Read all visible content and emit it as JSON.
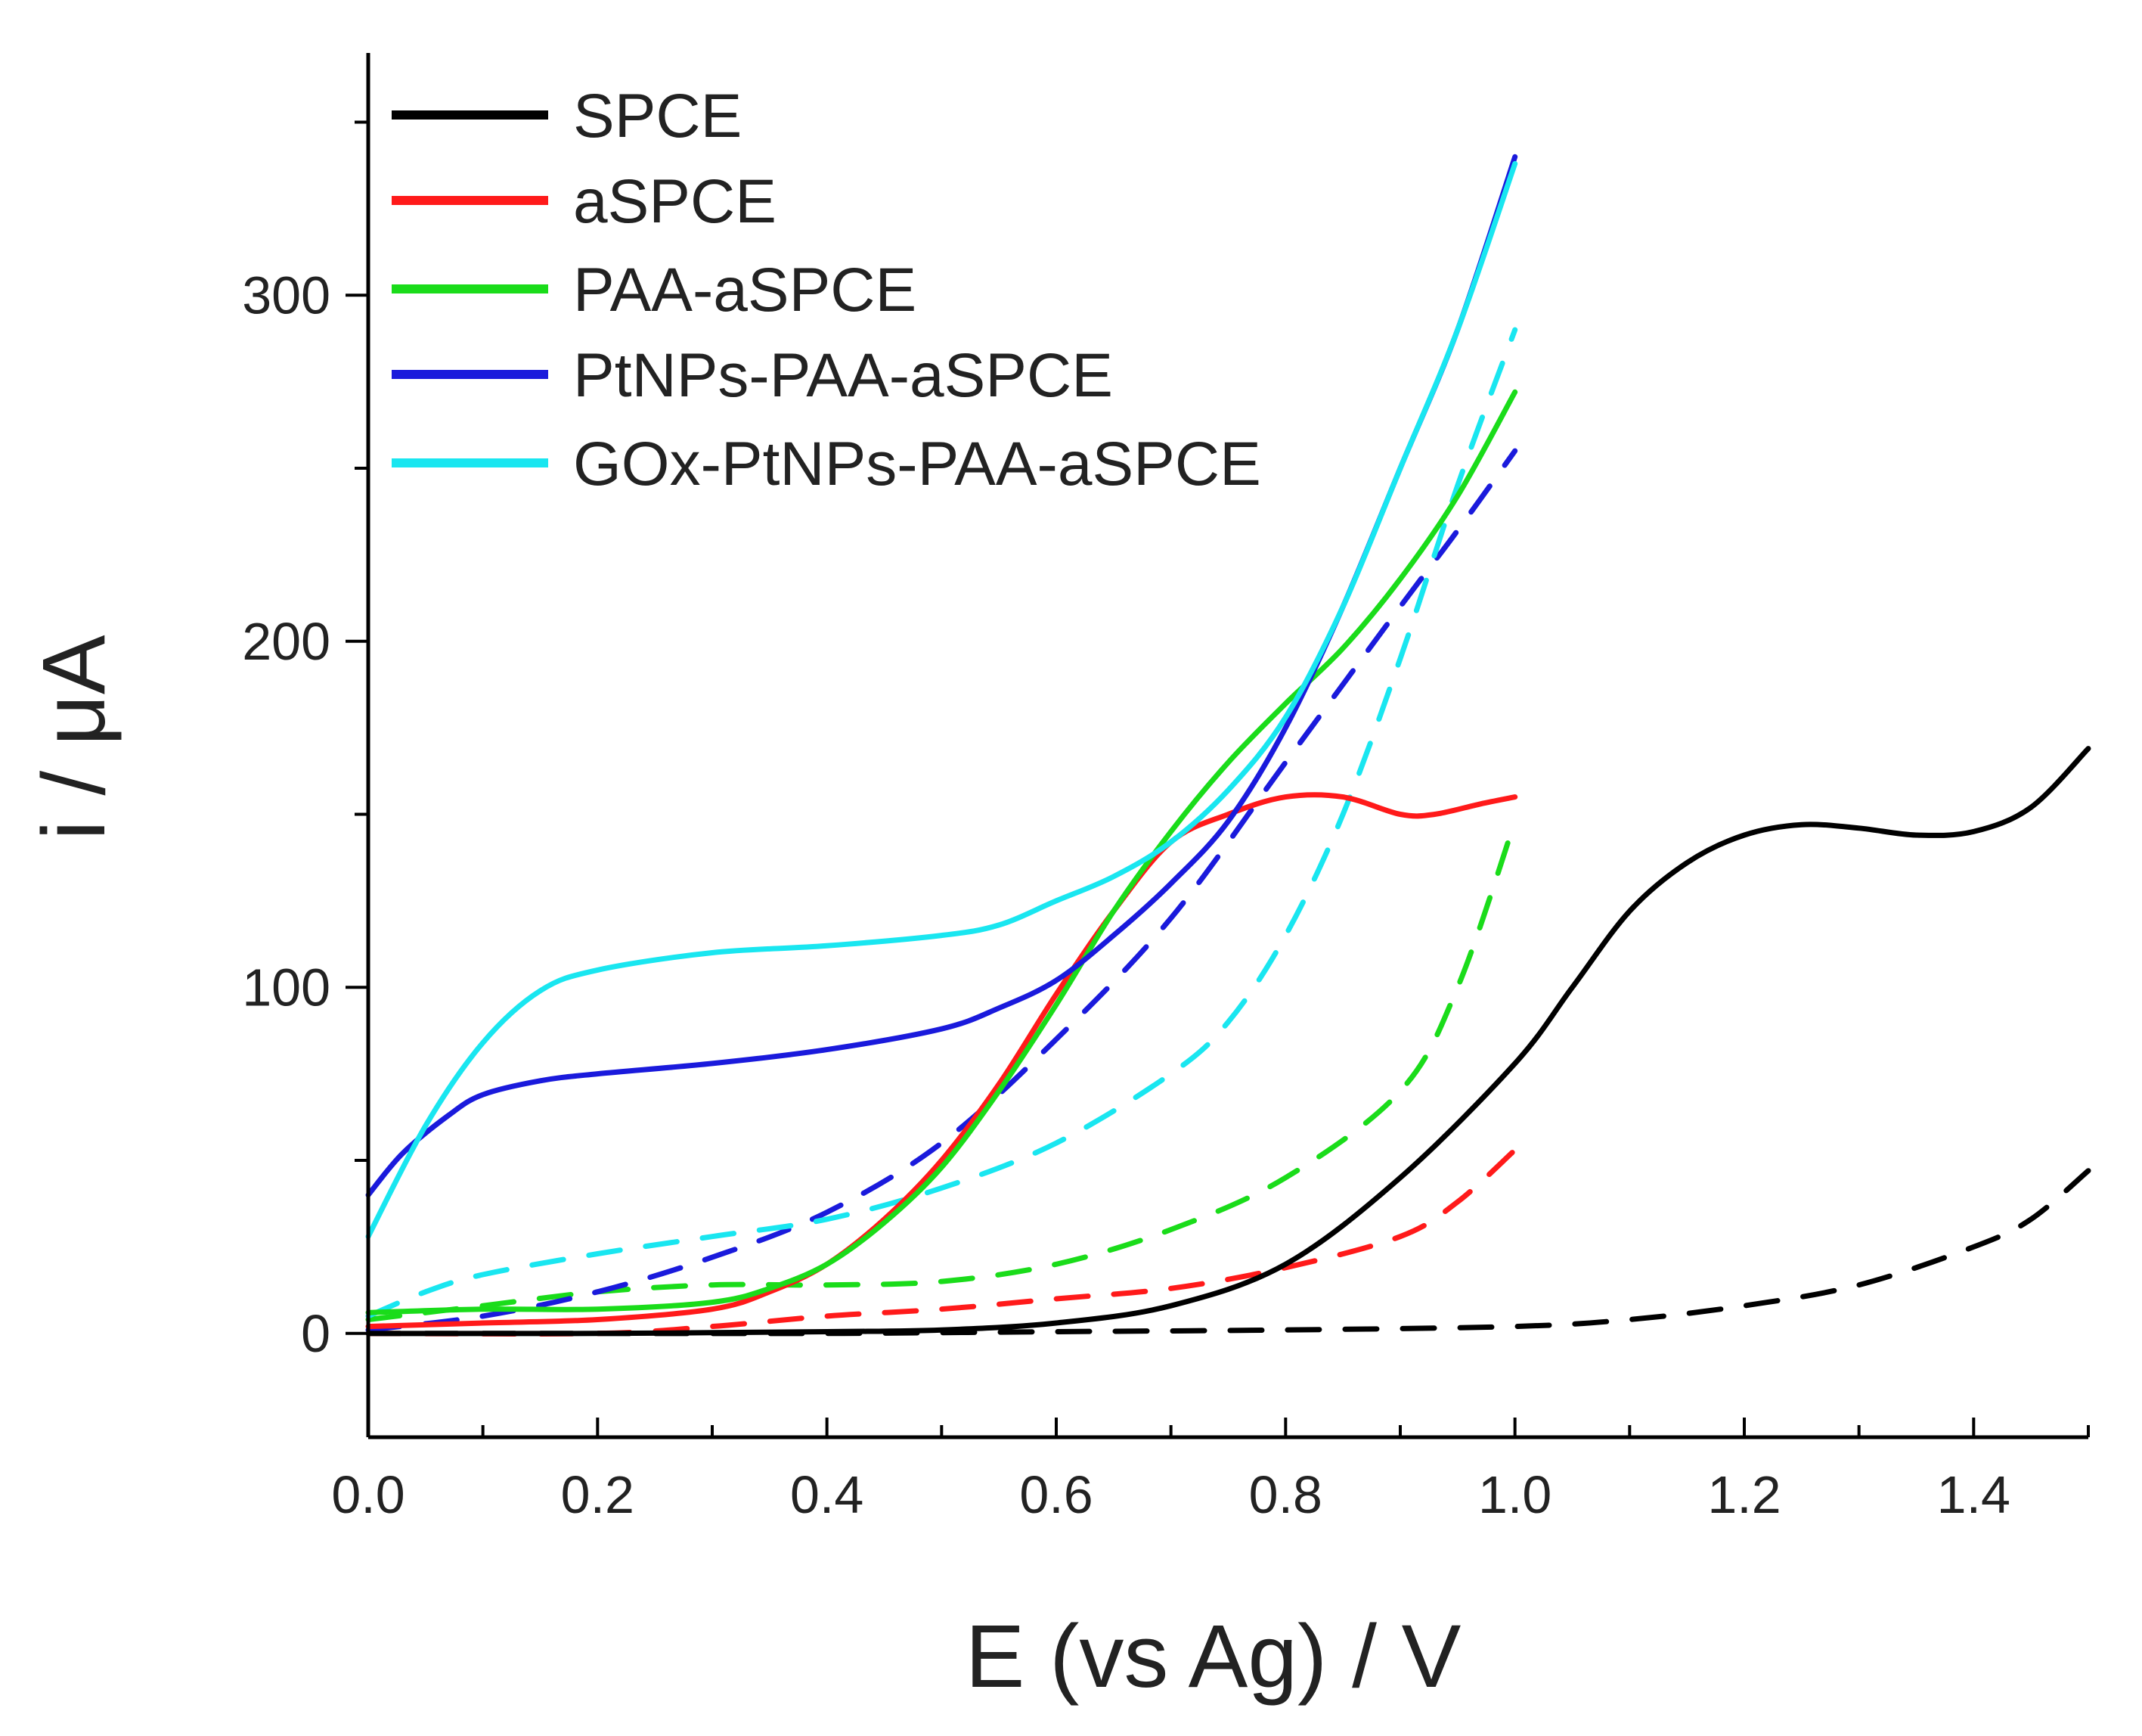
{
  "chart_data": {
    "type": "line",
    "title": "",
    "xlabel": "E (vs Ag) / V",
    "ylabel": "i / μA",
    "xlim": [
      0.0,
      1.5
    ],
    "ylim": [
      -30,
      370
    ],
    "xticks": [
      0.0,
      0.2,
      0.4,
      0.6,
      0.8,
      1.0,
      1.2,
      1.4
    ],
    "xtick_labels": [
      "0.0",
      "0.2",
      "0.4",
      "0.6",
      "0.8",
      "1.0",
      "1.2",
      "1.4"
    ],
    "yticks": [
      0,
      100,
      200,
      300
    ],
    "ytick_labels": [
      "0",
      "100",
      "200",
      "300"
    ],
    "legend_position": "top-left",
    "legend": [
      {
        "label": "SPCE",
        "color": "#000000"
      },
      {
        "label": "aSPCE",
        "color": "#ff1a1a"
      },
      {
        "label": "PAA-aSPCE",
        "color": "#1adc1a"
      },
      {
        "label": "PtNPs-PAA-aSPCE",
        "color": "#1a1adc"
      },
      {
        "label": "GOx-PtNPs-PAA-aSPCE",
        "color": "#19e6f0"
      }
    ],
    "series": [
      {
        "name": "SPCE",
        "style": "solid",
        "color": "#000000",
        "points": [
          [
            0.0,
            0
          ],
          [
            0.2,
            0
          ],
          [
            0.4,
            0.5
          ],
          [
            0.5,
            1
          ],
          [
            0.6,
            3
          ],
          [
            0.7,
            8
          ],
          [
            0.8,
            20
          ],
          [
            0.9,
            45
          ],
          [
            1.0,
            78
          ],
          [
            1.05,
            100
          ],
          [
            1.1,
            122
          ],
          [
            1.15,
            136
          ],
          [
            1.2,
            144
          ],
          [
            1.25,
            147
          ],
          [
            1.3,
            146
          ],
          [
            1.35,
            144
          ],
          [
            1.4,
            145
          ],
          [
            1.45,
            152
          ],
          [
            1.5,
            169
          ]
        ]
      },
      {
        "name": "SPCE (dashed)",
        "style": "dashed",
        "color": "#000000",
        "points": [
          [
            0.0,
            0
          ],
          [
            0.2,
            0
          ],
          [
            0.4,
            0
          ],
          [
            0.6,
            0.5
          ],
          [
            0.8,
            1
          ],
          [
            1.0,
            2
          ],
          [
            1.1,
            4
          ],
          [
            1.2,
            8
          ],
          [
            1.3,
            14
          ],
          [
            1.4,
            25
          ],
          [
            1.45,
            33
          ],
          [
            1.5,
            47
          ]
        ]
      },
      {
        "name": "aSPCE",
        "style": "solid",
        "color": "#ff1a1a",
        "points": [
          [
            0.0,
            2
          ],
          [
            0.1,
            3
          ],
          [
            0.2,
            4
          ],
          [
            0.3,
            7
          ],
          [
            0.35,
            12
          ],
          [
            0.4,
            20
          ],
          [
            0.45,
            33
          ],
          [
            0.5,
            50
          ],
          [
            0.55,
            72
          ],
          [
            0.6,
            98
          ],
          [
            0.65,
            122
          ],
          [
            0.7,
            142
          ],
          [
            0.75,
            150
          ],
          [
            0.8,
            155
          ],
          [
            0.85,
            155
          ],
          [
            0.9,
            150
          ],
          [
            0.93,
            150
          ],
          [
            0.97,
            153
          ],
          [
            1.0,
            155
          ]
        ]
      },
      {
        "name": "aSPCE (dashed)",
        "style": "dashed",
        "color": "#ff1a1a",
        "points": [
          [
            0.0,
            0
          ],
          [
            0.2,
            0
          ],
          [
            0.3,
            2
          ],
          [
            0.4,
            5
          ],
          [
            0.5,
            7
          ],
          [
            0.6,
            10
          ],
          [
            0.7,
            13
          ],
          [
            0.8,
            19
          ],
          [
            0.9,
            28
          ],
          [
            0.95,
            38
          ],
          [
            1.0,
            53
          ]
        ]
      },
      {
        "name": "PAA-aSPCE",
        "style": "solid",
        "color": "#1adc1a",
        "points": [
          [
            0.0,
            6
          ],
          [
            0.1,
            7
          ],
          [
            0.2,
            7
          ],
          [
            0.3,
            9
          ],
          [
            0.35,
            13
          ],
          [
            0.4,
            20
          ],
          [
            0.45,
            32
          ],
          [
            0.5,
            48
          ],
          [
            0.55,
            70
          ],
          [
            0.6,
            95
          ],
          [
            0.65,
            122
          ],
          [
            0.7,
            145
          ],
          [
            0.75,
            165
          ],
          [
            0.8,
            182
          ],
          [
            0.85,
            198
          ],
          [
            0.9,
            218
          ],
          [
            0.95,
            242
          ],
          [
            1.0,
            272
          ]
        ]
      },
      {
        "name": "PAA-aSPCE (dashed)",
        "style": "dashed",
        "color": "#1adc1a",
        "points": [
          [
            0.0,
            4
          ],
          [
            0.1,
            8
          ],
          [
            0.2,
            12
          ],
          [
            0.3,
            14
          ],
          [
            0.4,
            14
          ],
          [
            0.5,
            15
          ],
          [
            0.6,
            20
          ],
          [
            0.7,
            30
          ],
          [
            0.8,
            45
          ],
          [
            0.9,
            70
          ],
          [
            0.95,
            100
          ],
          [
            1.0,
            148
          ]
        ]
      },
      {
        "name": "PtNPs-PAA-aSPCE",
        "style": "solid",
        "color": "#1a1adc",
        "points": [
          [
            0.0,
            40
          ],
          [
            0.03,
            52
          ],
          [
            0.07,
            63
          ],
          [
            0.1,
            69
          ],
          [
            0.15,
            73
          ],
          [
            0.2,
            75
          ],
          [
            0.3,
            78
          ],
          [
            0.4,
            82
          ],
          [
            0.5,
            88
          ],
          [
            0.55,
            94
          ],
          [
            0.6,
            102
          ],
          [
            0.65,
            115
          ],
          [
            0.7,
            130
          ],
          [
            0.75,
            148
          ],
          [
            0.8,
            175
          ],
          [
            0.85,
            210
          ],
          [
            0.9,
            250
          ],
          [
            0.95,
            290
          ],
          [
            1.0,
            340
          ]
        ]
      },
      {
        "name": "PtNPs-PAA-aSPCE (dashed)",
        "style": "dashed",
        "color": "#1a1adc",
        "points": [
          [
            0.0,
            1
          ],
          [
            0.1,
            5
          ],
          [
            0.2,
            12
          ],
          [
            0.3,
            22
          ],
          [
            0.4,
            35
          ],
          [
            0.5,
            55
          ],
          [
            0.6,
            85
          ],
          [
            0.7,
            120
          ],
          [
            0.8,
            165
          ],
          [
            0.9,
            210
          ],
          [
            0.95,
            232
          ],
          [
            1.0,
            255
          ]
        ]
      },
      {
        "name": "GOx-PtNPs-PAA-aSPCE",
        "style": "solid",
        "color": "#19e6f0",
        "points": [
          [
            0.0,
            28
          ],
          [
            0.05,
            60
          ],
          [
            0.1,
            84
          ],
          [
            0.15,
            99
          ],
          [
            0.2,
            105
          ],
          [
            0.3,
            110
          ],
          [
            0.4,
            112
          ],
          [
            0.5,
            115
          ],
          [
            0.55,
            118
          ],
          [
            0.6,
            125
          ],
          [
            0.65,
            132
          ],
          [
            0.7,
            142
          ],
          [
            0.75,
            157
          ],
          [
            0.8,
            178
          ],
          [
            0.85,
            210
          ],
          [
            0.9,
            250
          ],
          [
            0.95,
            290
          ],
          [
            1.0,
            338
          ]
        ]
      },
      {
        "name": "GOx-PtNPs-PAA-aSPCE (dashed)",
        "style": "dashed",
        "color": "#19e6f0",
        "points": [
          [
            0.0,
            5
          ],
          [
            0.05,
            12
          ],
          [
            0.1,
            17
          ],
          [
            0.2,
            23
          ],
          [
            0.3,
            28
          ],
          [
            0.4,
            33
          ],
          [
            0.5,
            42
          ],
          [
            0.6,
            55
          ],
          [
            0.7,
            75
          ],
          [
            0.75,
            90
          ],
          [
            0.8,
            115
          ],
          [
            0.85,
            150
          ],
          [
            0.9,
            195
          ],
          [
            0.95,
            245
          ],
          [
            1.0,
            290
          ]
        ]
      }
    ]
  }
}
